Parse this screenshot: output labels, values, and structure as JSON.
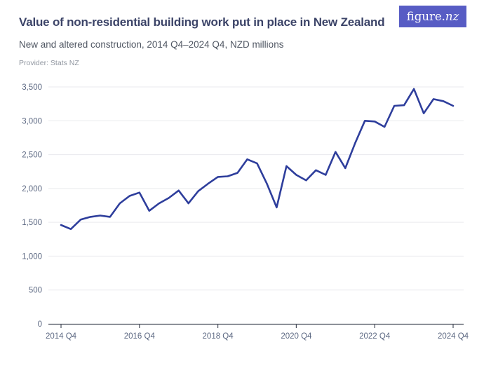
{
  "header": {
    "title": "Value of non-residential building work put in place in New Zealand",
    "subtitle": "New and altered construction, 2014 Q4–2024 Q4, NZD millions",
    "provider": "Provider: Stats NZ"
  },
  "logo": {
    "text_main": "figure.",
    "text_suffix": "nz",
    "bg_color": "#575cc4",
    "text_color": "#ffffff"
  },
  "chart_data": {
    "type": "line",
    "title": "Value of non-residential building work put in place in New Zealand",
    "subtitle": "New and altered construction, 2014 Q4–2024 Q4, NZD millions",
    "xlabel": "",
    "ylabel": "",
    "grid": true,
    "legend": "none",
    "ylim": [
      0,
      3500
    ],
    "y_tick_step": 500,
    "y_tick_labels": [
      "0",
      "500",
      "1,000",
      "1,500",
      "2,000",
      "2,500",
      "3,000",
      "3,500"
    ],
    "x_tick_indices": [
      0,
      8,
      16,
      24,
      32,
      40
    ],
    "x_tick_labels": [
      "2014 Q4",
      "2016 Q4",
      "2018 Q4",
      "2020 Q4",
      "2022 Q4",
      "2024 Q4"
    ],
    "categories": [
      "2014 Q4",
      "2015 Q1",
      "2015 Q2",
      "2015 Q3",
      "2015 Q4",
      "2016 Q1",
      "2016 Q2",
      "2016 Q3",
      "2016 Q4",
      "2017 Q1",
      "2017 Q2",
      "2017 Q3",
      "2017 Q4",
      "2018 Q1",
      "2018 Q2",
      "2018 Q3",
      "2018 Q4",
      "2019 Q1",
      "2019 Q2",
      "2019 Q3",
      "2019 Q4",
      "2020 Q1",
      "2020 Q2",
      "2020 Q3",
      "2020 Q4",
      "2021 Q1",
      "2021 Q2",
      "2021 Q3",
      "2021 Q4",
      "2022 Q1",
      "2022 Q2",
      "2022 Q3",
      "2022 Q4",
      "2023 Q1",
      "2023 Q2",
      "2023 Q3",
      "2023 Q4",
      "2024 Q1",
      "2024 Q2",
      "2024 Q3",
      "2024 Q4"
    ],
    "values": [
      1460,
      1400,
      1540,
      1580,
      1600,
      1580,
      1780,
      1890,
      1940,
      1670,
      1780,
      1860,
      1970,
      1780,
      1960,
      2070,
      2170,
      2180,
      2230,
      2430,
      2370,
      2070,
      1720,
      2330,
      2200,
      2120,
      2270,
      2200,
      2540,
      2300,
      2670,
      3000,
      2990,
      2910,
      3220,
      3230,
      3470,
      3110,
      3320,
      3290,
      3220
    ],
    "line_color": "#2e3e9c",
    "grid_color": "#e9eaee",
    "axis_color": "#4a4f5c",
    "tick_label_color": "#5d6983"
  }
}
